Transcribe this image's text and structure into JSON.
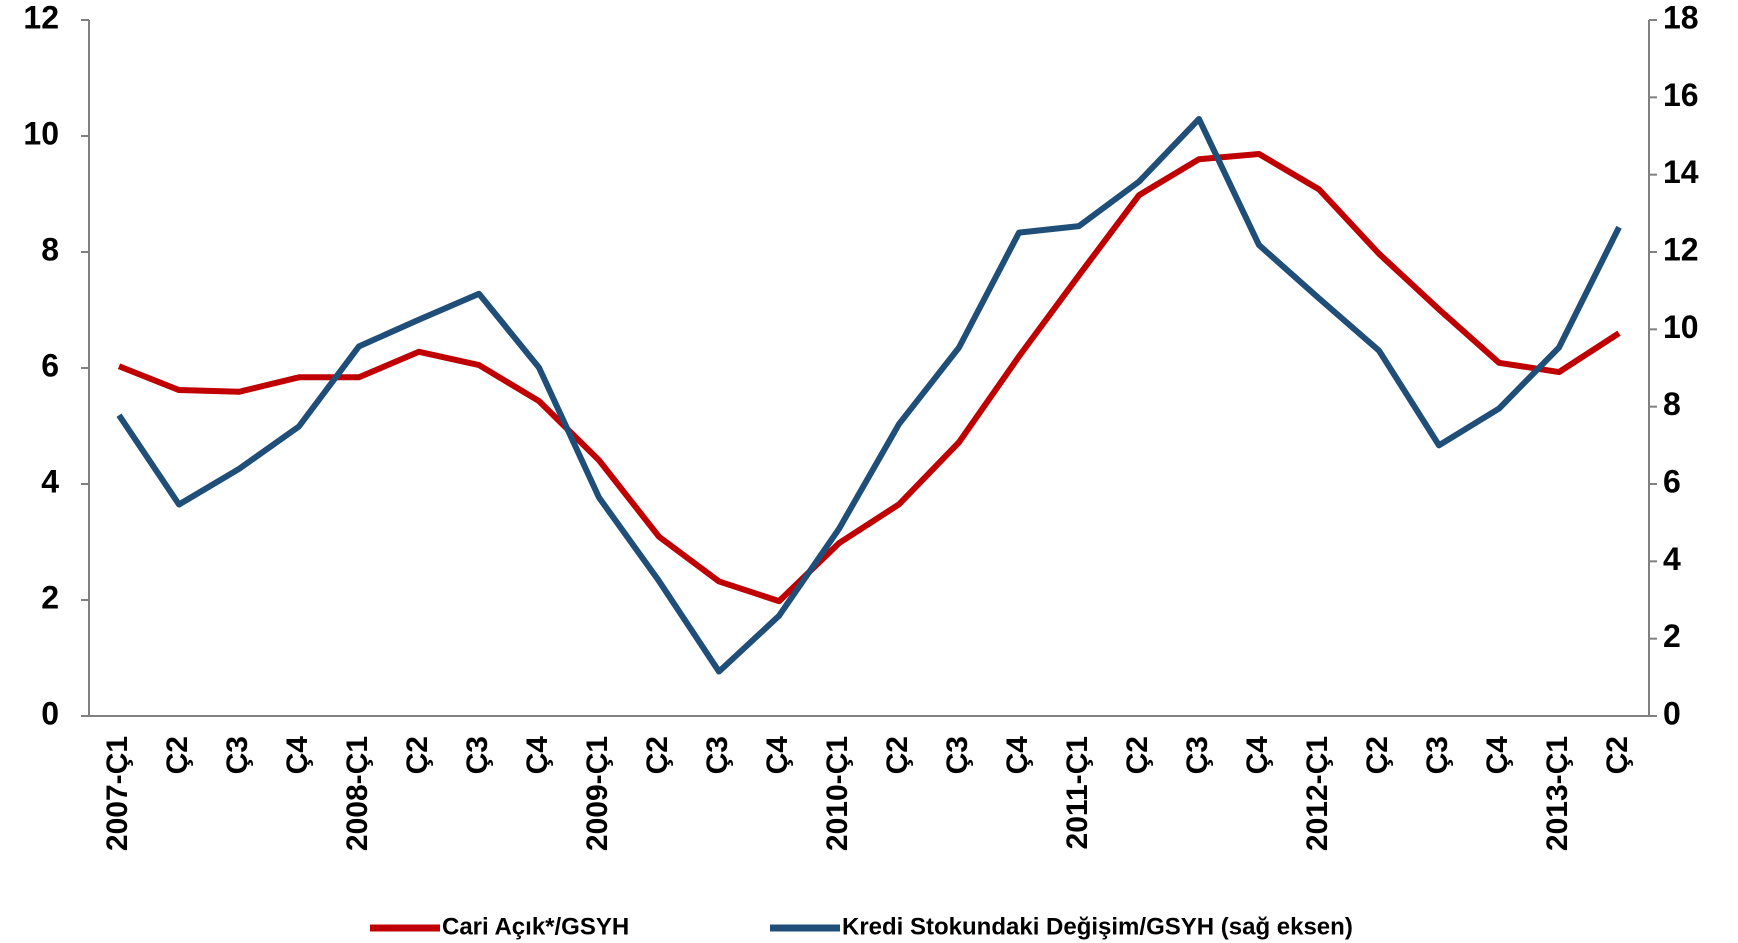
{
  "chart_data": {
    "type": "line",
    "categories": [
      "2007-Ç1",
      "Ç2",
      "Ç3",
      "Ç4",
      "2008-Ç1",
      "Ç2",
      "Ç3",
      "Ç4",
      "2009-Ç1",
      "Ç2",
      "Ç3",
      "Ç4",
      "2010-Ç1",
      "Ç2",
      "Ç3",
      "Ç4",
      "2011-Ç1",
      "Ç2",
      "Ç3",
      "Ç4",
      "2012-Ç1",
      "Ç2",
      "Ç3",
      "Ç4",
      "2013-Ç1",
      "Ç2"
    ],
    "series": [
      {
        "name": "Cari Açık*/GSYH",
        "color": "#c00000",
        "values": [
          6.03,
          5.62,
          5.59,
          5.84,
          5.84,
          6.28,
          6.05,
          5.43,
          4.41,
          3.09,
          2.32,
          1.98,
          2.98,
          3.65,
          4.72,
          6.2,
          7.6,
          8.98,
          9.6,
          9.69,
          9.08,
          7.97,
          7.01,
          6.09,
          5.93,
          6.6
        ]
      },
      {
        "name": "Kredi Stokundaki Değişim/GSYH (sağ eksen)",
        "color": "#1f4e79",
        "axis": "y2",
        "values": [
          7.78,
          5.47,
          6.39,
          7.49,
          9.56,
          10.25,
          10.92,
          9.01,
          5.65,
          3.49,
          1.15,
          2.59,
          4.84,
          7.55,
          9.53,
          12.5,
          12.67,
          13.82,
          15.44,
          12.18,
          10.8,
          9.45,
          7.0,
          7.95,
          9.53,
          12.64
        ]
      }
    ],
    "ylim": [
      0,
      12
    ],
    "yticks": [
      0,
      2,
      4,
      6,
      8,
      10,
      12
    ],
    "y2lim": [
      0,
      18
    ],
    "y2ticks": [
      0,
      2,
      4,
      6,
      8,
      10,
      12,
      14,
      16,
      18
    ],
    "grid": false,
    "legend": "bottom"
  }
}
